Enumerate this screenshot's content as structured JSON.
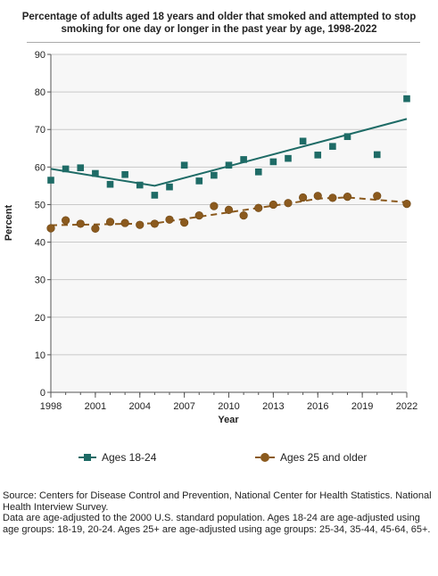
{
  "chart_data": {
    "type": "line",
    "title": "Percentage of adults aged 18 years and older that smoked and attempted to stop smoking for one day or longer in the past year by age, 1998-2022",
    "xlabel": "Year",
    "ylabel": "Percent",
    "xlim": [
      1998,
      2022
    ],
    "ylim": [
      0,
      90
    ],
    "xticks": [
      "1998",
      "2001",
      "2004",
      "2007",
      "2010",
      "2013",
      "2016",
      "2019",
      "2022"
    ],
    "yticks": [
      "0",
      "10",
      "20",
      "30",
      "40",
      "50",
      "60",
      "70",
      "80",
      "90"
    ],
    "grid": true,
    "legend_position": "bottom",
    "series": [
      {
        "name": "Ages 18-24",
        "marker": "square",
        "color": "#1e6b66",
        "x": [
          1998,
          1999,
          2000,
          2001,
          2002,
          2003,
          2004,
          2005,
          2006,
          2007,
          2008,
          2009,
          2010,
          2011,
          2012,
          2013,
          2014,
          2015,
          2016,
          2017,
          2018,
          2020,
          2022
        ],
        "y": [
          56.5,
          59.5,
          59.8,
          58.3,
          55.4,
          58.0,
          55.2,
          52.5,
          54.7,
          60.5,
          56.3,
          57.8,
          60.5,
          62.0,
          58.7,
          61.4,
          62.3,
          66.9,
          63.2,
          65.5,
          68.1,
          63.3,
          78.2
        ],
        "trend": {
          "x": [
            1998,
            2005,
            2022
          ],
          "y": [
            59.5,
            55.0,
            72.8
          ]
        }
      },
      {
        "name": "Ages 25 and older",
        "marker": "circle",
        "color": "#8b5a1e",
        "x": [
          1998,
          1999,
          2000,
          2001,
          2002,
          2003,
          2004,
          2005,
          2006,
          2007,
          2008,
          2009,
          2010,
          2011,
          2012,
          2013,
          2014,
          2015,
          2016,
          2017,
          2018,
          2020,
          2022
        ],
        "y": [
          43.7,
          45.8,
          44.9,
          43.6,
          45.4,
          45.1,
          44.6,
          44.9,
          46.0,
          45.2,
          47.1,
          49.6,
          48.6,
          47.1,
          49.1,
          50.0,
          50.4,
          51.9,
          52.3,
          51.8,
          52.1,
          52.3,
          50.2
        ],
        "trend": {
          "x": [
            1998,
            2005,
            2015,
            2016,
            2018,
            2022
          ],
          "y": [
            44.5,
            45.0,
            50.9,
            51.6,
            51.9,
            50.6
          ]
        }
      }
    ]
  },
  "notes": {
    "source": "Source: Centers for Disease Control and Prevention, National Center for Health Statistics. National Health Interview Survey.",
    "detail": "Data are age-adjusted to the 2000 U.S. standard population. Ages 18-24 are age-adjusted using age groups: 18-19, 20-24. Ages 25+ are age-adjusted using age groups: 25-34, 35-44, 45-64, 65+."
  }
}
